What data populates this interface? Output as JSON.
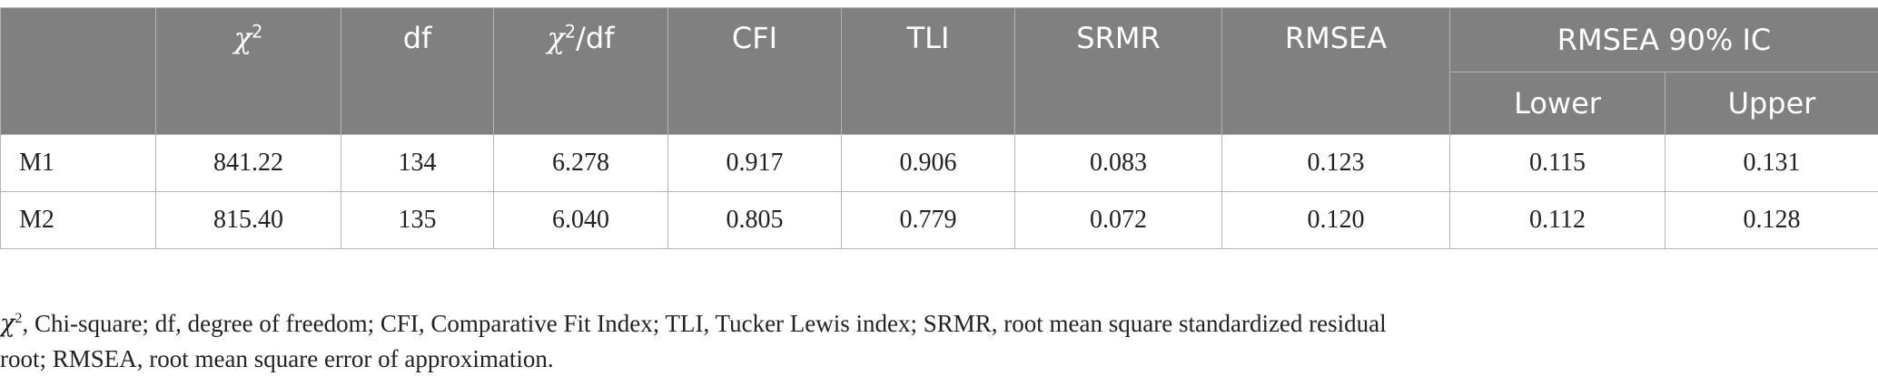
{
  "table": {
    "columns": [
      {
        "symbol": "χ",
        "sup": "2"
      },
      "df",
      {
        "symbol": "χ",
        "sup": "2",
        "suffix": "/df"
      },
      "CFI",
      "TLI",
      "SRMR",
      "RMSEA"
    ],
    "group": "RMSEA 90% IC",
    "subcolumns": [
      "Lower",
      "Upper"
    ],
    "rows": [
      {
        "label": "M1",
        "cells": [
          "841.22",
          "134",
          "6.278",
          "0.917",
          "0.906",
          "0.083",
          "0.123",
          "0.115",
          "0.131"
        ]
      },
      {
        "label": "M2",
        "cells": [
          "815.40",
          "135",
          "6.040",
          "0.805",
          "0.779",
          "0.072",
          "0.120",
          "0.112",
          "0.128"
        ]
      }
    ]
  },
  "footnote": {
    "symbol": "χ",
    "sup": "2",
    "text": ", Chi-square; df, degree of freedom; CFI, Comparative Fit Index; TLI, Tucker Lewis index; SRMR, root mean square standardized residual root; RMSEA, root mean square error of approximation."
  }
}
